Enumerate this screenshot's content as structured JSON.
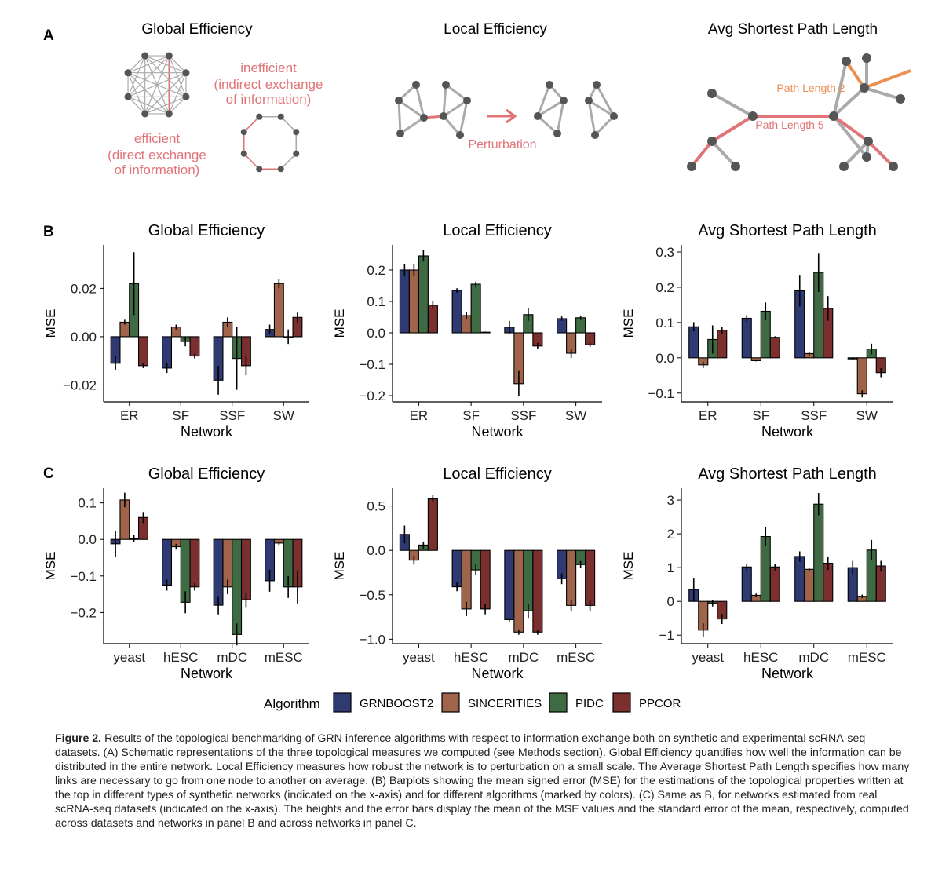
{
  "colors": {
    "GRNBOOST2": "#2f3a73",
    "SINCERITIES": "#a0644a",
    "PIDC": "#3e6b43",
    "PPCOR": "#7b2f2e",
    "schematic_accent": "#e07478",
    "schematic_orange": "#ec8f52",
    "node": "#555555",
    "edge": "#aaaaaa"
  },
  "panel_a": {
    "letter": "A",
    "titles": [
      "Global Efficiency",
      "Local Efficiency",
      "Avg Shortest Path Length"
    ],
    "efficient_lines": [
      "efficient",
      "(direct exchange",
      "of information)"
    ],
    "inefficient_lines": [
      "inefficient",
      "(indirect exchange",
      "of information)"
    ],
    "perturbation_label": "Perturbation",
    "path_length_2_label": "Path Length 2",
    "path_length_5_label": "Path Length 5"
  },
  "legend": {
    "title": "Algorithm",
    "items": [
      "GRNBOOST2",
      "SINCERITIES",
      "PIDC",
      "PPCOR"
    ]
  },
  "chart_data": [
    {
      "panel": "B",
      "type": "bar",
      "title": "Global Efficiency",
      "xlabel": "Network",
      "ylabel": "MSE",
      "categories": [
        "ER",
        "SF",
        "SSF",
        "SW"
      ],
      "ylim": [
        -0.027,
        0.038
      ],
      "yticks": [
        -0.02,
        0.0,
        0.02
      ],
      "ytick_labels": [
        "−0.02",
        "0.00",
        "0.02"
      ],
      "series": [
        {
          "name": "GRNBOOST2",
          "values": [
            -0.011,
            -0.013,
            -0.018,
            0.003
          ],
          "errors": [
            0.003,
            0.002,
            0.006,
            0.002
          ]
        },
        {
          "name": "SINCERITIES",
          "values": [
            0.006,
            0.004,
            0.006,
            0.022
          ],
          "errors": [
            0.001,
            0.001,
            0.002,
            0.002
          ]
        },
        {
          "name": "PIDC",
          "values": [
            0.022,
            -0.002,
            -0.009,
            0.0
          ],
          "errors": [
            0.013,
            0.002,
            0.013,
            0.003
          ]
        },
        {
          "name": "PPCOR",
          "values": [
            -0.012,
            -0.008,
            -0.012,
            0.008
          ],
          "errors": [
            0.001,
            0.001,
            0.004,
            0.002
          ]
        }
      ]
    },
    {
      "panel": "B",
      "type": "bar",
      "title": "Local Efficiency",
      "xlabel": "Network",
      "ylabel": "MSE",
      "categories": [
        "ER",
        "SF",
        "SSF",
        "SW"
      ],
      "ylim": [
        -0.22,
        0.28
      ],
      "yticks": [
        -0.2,
        -0.1,
        0.0,
        0.1,
        0.2
      ],
      "ytick_labels": [
        "−0.2",
        "−0.1",
        "0.0",
        "0.1",
        "0.2"
      ],
      "series": [
        {
          "name": "GRNBOOST2",
          "values": [
            0.2,
            0.135,
            0.018,
            0.045
          ],
          "errors": [
            0.02,
            0.007,
            0.02,
            0.007
          ]
        },
        {
          "name": "SINCERITIES",
          "values": [
            0.2,
            0.055,
            -0.162,
            -0.065
          ],
          "errors": [
            0.02,
            0.01,
            0.04,
            0.015
          ]
        },
        {
          "name": "PIDC",
          "values": [
            0.245,
            0.155,
            0.058,
            0.048
          ],
          "errors": [
            0.018,
            0.008,
            0.02,
            0.007
          ]
        },
        {
          "name": "PPCOR",
          "values": [
            0.088,
            0.002,
            -0.042,
            -0.038
          ],
          "errors": [
            0.012,
            0.002,
            0.01,
            0.006
          ]
        }
      ]
    },
    {
      "panel": "B",
      "type": "bar",
      "title": "Avg Shortest Path Length",
      "xlabel": "Network",
      "ylabel": "MSE",
      "categories": [
        "ER",
        "SF",
        "SSF",
        "SW"
      ],
      "ylim": [
        -0.125,
        0.32
      ],
      "yticks": [
        -0.1,
        0.0,
        0.1,
        0.2,
        0.3
      ],
      "ytick_labels": [
        "−0.1",
        "0.0",
        "0.1",
        "0.2",
        "0.3"
      ],
      "series": [
        {
          "name": "GRNBOOST2",
          "values": [
            0.088,
            0.112,
            0.19,
            -0.003
          ],
          "errors": [
            0.013,
            0.009,
            0.045,
            0.004
          ]
        },
        {
          "name": "SINCERITIES",
          "values": [
            -0.02,
            -0.008,
            0.012,
            -0.102
          ],
          "errors": [
            0.009,
            0.002,
            0.005,
            0.01
          ]
        },
        {
          "name": "PIDC",
          "values": [
            0.052,
            0.132,
            0.242,
            0.025
          ],
          "errors": [
            0.04,
            0.025,
            0.055,
            0.015
          ]
        },
        {
          "name": "PPCOR",
          "values": [
            0.078,
            0.058,
            0.14,
            -0.042
          ],
          "errors": [
            0.01,
            0.003,
            0.035,
            0.013
          ]
        }
      ]
    },
    {
      "panel": "C",
      "type": "bar",
      "title": "Global Efficiency",
      "xlabel": "Network",
      "ylabel": "MSE",
      "categories": [
        "yeast",
        "hESC",
        "mDC",
        "mESC"
      ],
      "ylim": [
        -0.285,
        0.14
      ],
      "yticks": [
        -0.2,
        -0.1,
        0.0,
        0.1
      ],
      "ytick_labels": [
        "−0.2",
        "−0.1",
        "0.0",
        "0.1"
      ],
      "series": [
        {
          "name": "GRNBOOST2",
          "values": [
            -0.012,
            -0.125,
            -0.18,
            -0.113
          ],
          "errors": [
            0.035,
            0.015,
            0.025,
            0.03
          ]
        },
        {
          "name": "SINCERITIES",
          "values": [
            0.108,
            -0.02,
            -0.13,
            -0.01
          ],
          "errors": [
            0.02,
            0.008,
            0.02,
            0.005
          ]
        },
        {
          "name": "PIDC",
          "values": [
            0.002,
            -0.172,
            -0.26,
            -0.13
          ],
          "errors": [
            0.01,
            0.03,
            0.03,
            0.03
          ]
        },
        {
          "name": "PPCOR",
          "values": [
            0.06,
            -0.13,
            -0.165,
            -0.13
          ],
          "errors": [
            0.015,
            0.01,
            0.02,
            0.045
          ]
        }
      ]
    },
    {
      "panel": "C",
      "type": "bar",
      "title": "Local Efficiency",
      "xlabel": "Network",
      "ylabel": "MSE",
      "categories": [
        "yeast",
        "hESC",
        "mDC",
        "mESC"
      ],
      "ylim": [
        -1.05,
        0.7
      ],
      "yticks": [
        -1.0,
        -0.5,
        0.0,
        0.5
      ],
      "ytick_labels": [
        "−1.0",
        "−0.5",
        "0.0",
        "0.5"
      ],
      "series": [
        {
          "name": "GRNBOOST2",
          "values": [
            0.18,
            -0.41,
            -0.78,
            -0.32
          ],
          "errors": [
            0.1,
            0.05,
            0.02,
            0.06
          ]
        },
        {
          "name": "SINCERITIES",
          "values": [
            -0.11,
            -0.66,
            -0.92,
            -0.62
          ],
          "errors": [
            0.05,
            0.08,
            0.03,
            0.06
          ]
        },
        {
          "name": "PIDC",
          "values": [
            0.06,
            -0.22,
            -0.68,
            -0.16
          ],
          "errors": [
            0.04,
            0.06,
            0.08,
            0.04
          ]
        },
        {
          "name": "PPCOR",
          "values": [
            0.58,
            -0.66,
            -0.92,
            -0.62
          ],
          "errors": [
            0.04,
            0.06,
            0.03,
            0.06
          ]
        }
      ]
    },
    {
      "panel": "C",
      "type": "bar",
      "title": "Avg Shortest Path Length",
      "xlabel": "Network",
      "ylabel": "MSE",
      "categories": [
        "yeast",
        "hESC",
        "mDC",
        "mESC"
      ],
      "ylim": [
        -1.25,
        3.35
      ],
      "yticks": [
        -1,
        0,
        1,
        2,
        3
      ],
      "ytick_labels": [
        "−1",
        "0",
        "1",
        "2",
        "3"
      ],
      "series": [
        {
          "name": "GRNBOOST2",
          "values": [
            0.35,
            1.02,
            1.33,
            1.0
          ],
          "errors": [
            0.35,
            0.1,
            0.15,
            0.2
          ]
        },
        {
          "name": "SINCERITIES",
          "values": [
            -0.85,
            0.18,
            0.95,
            0.15
          ],
          "errors": [
            0.2,
            0.05,
            0.05,
            0.05
          ]
        },
        {
          "name": "PIDC",
          "values": [
            -0.05,
            1.92,
            2.88,
            1.52
          ],
          "errors": [
            0.1,
            0.28,
            0.33,
            0.3
          ]
        },
        {
          "name": "PPCOR",
          "values": [
            -0.52,
            1.02,
            1.13,
            1.05
          ],
          "errors": [
            0.15,
            0.1,
            0.2,
            0.15
          ]
        }
      ]
    }
  ],
  "caption": {
    "label": "Figure 2.",
    "text": " Results of the topological benchmarking of GRN inference algorithms with respect to information exchange both on synthetic and experimental scRNA-seq datasets. (A) Schematic representations of the three topological measures we computed (see Methods section). Global Efficiency quantifies how well the information can be distributed in the entire network. Local Efficiency measures how robust the network is to perturbation on a small scale. The Average Shortest Path Length specifies how many links are necessary to go from one node to another on average. (B) Barplots showing the mean signed error (MSE) for the estimations of the topological properties written at the top in different types of synthetic networks (indicated on the x-axis) and for different algorithms (marked by colors). (C) Same as B, for networks estimated from real scRNA-seq datasets (indicated on the x-axis). The heights and the error bars display the mean of the MSE values and the standard error of the mean, respectively, computed across datasets and networks in panel B and across networks in panel C."
  }
}
